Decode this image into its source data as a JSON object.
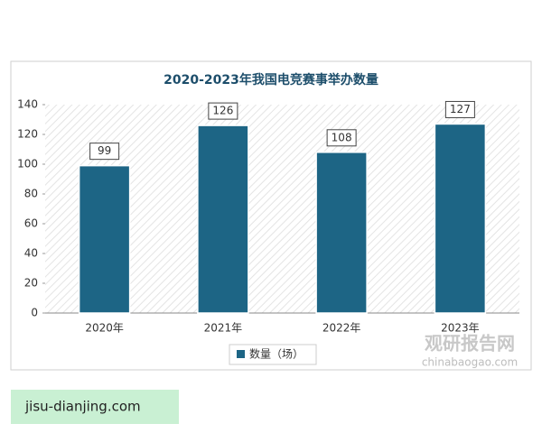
{
  "chart_data": {
    "type": "bar",
    "title": "2020-2023年我国电竞赛事举办数量",
    "categories": [
      "2020年",
      "2021年",
      "2022年",
      "2023年"
    ],
    "series": [
      {
        "name": "数量（场）",
        "color": "#1d6585",
        "values": [
          99,
          126,
          108,
          127
        ]
      }
    ],
    "ylim": [
      0,
      140
    ],
    "yticks": [
      0,
      20,
      40,
      60,
      80,
      100,
      120,
      140
    ],
    "legend": "bottom"
  },
  "watermark": {
    "name": "观研报告网",
    "url": "chinabaogao.com"
  },
  "footer": "jisu-dianjing.com"
}
